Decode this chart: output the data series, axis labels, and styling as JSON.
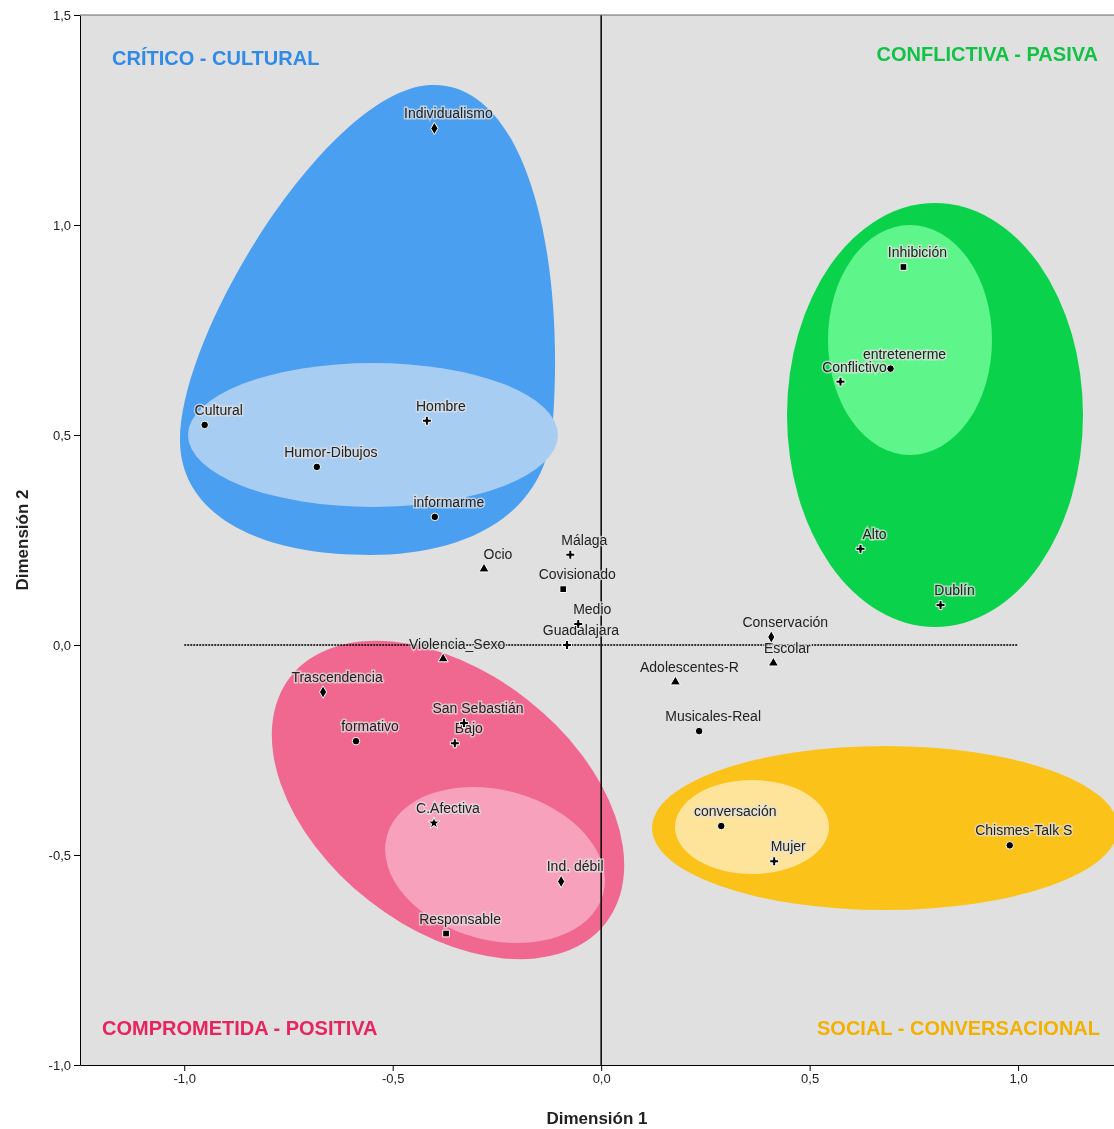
{
  "chart_data": {
    "type": "scatter",
    "xlabel": "Dimensión 1",
    "ylabel": "Dimensión 2",
    "xlim": [
      -1.25,
      1.23
    ],
    "ylim": [
      -1,
      1.5
    ],
    "xticks": [
      {
        "value": -1,
        "label": "-1,0"
      },
      {
        "value": -0.5,
        "label": "-0,5"
      },
      {
        "value": 0,
        "label": "0,0"
      },
      {
        "value": 0.5,
        "label": "0,5"
      },
      {
        "value": 1,
        "label": "1,0"
      }
    ],
    "yticks": [
      {
        "value": -1,
        "label": "-1,0"
      },
      {
        "value": -0.5,
        "label": "-0,5"
      },
      {
        "value": 0,
        "label": "0,0"
      },
      {
        "value": 0.5,
        "label": "0,5"
      },
      {
        "value": 1,
        "label": "1,0"
      },
      {
        "value": 1.5,
        "label": "1,5"
      }
    ],
    "grid": false,
    "ref_lines": [
      {
        "axis": "x",
        "value": 0,
        "line_style": "solid"
      },
      {
        "axis": "y",
        "value": 0,
        "line_style": "dotted"
      }
    ],
    "series": [
      {
        "color": "#000000",
        "marker": "circle",
        "x": [
          -0.951,
          -0.682,
          0.235,
          0.98,
          -0.399,
          0.694,
          -0.588,
          0.288
        ],
        "values": [
          0.524,
          0.424,
          -0.205,
          -0.477,
          0.305,
          0.658,
          -0.229,
          -0.431
        ]
      },
      {
        "color": "#000000",
        "marker": "diamond",
        "x": [
          -0.4,
          -0.667,
          0.408,
          -0.096
        ],
        "values": [
          1.23,
          -0.112,
          0.019,
          -0.563
        ]
      },
      {
        "color": "#000000",
        "marker": "square",
        "x": [
          0.725,
          -0.091,
          -0.372
        ],
        "values": [
          0.9,
          0.133,
          -0.687
        ]
      },
      {
        "color": "#000000",
        "marker": "triangle",
        "x": [
          -0.281,
          -0.379,
          0.178,
          0.413
        ],
        "values": [
          0.181,
          -0.033,
          -0.088,
          -0.043
        ]
      },
      {
        "color": "#000000",
        "marker": "cross",
        "x": [
          -0.418,
          0.415,
          -0.074,
          -0.082,
          -0.329,
          0.814,
          0.574,
          0.622,
          -0.055,
          -0.351
        ],
        "values": [
          0.534,
          -0.515,
          0.215,
          0,
          -0.186,
          0.095,
          0.627,
          0.229,
          0.05,
          -0.234
        ]
      },
      {
        "color": "#000000",
        "marker": "star",
        "x": [
          -0.401
        ],
        "values": [
          -0.424
        ]
      }
    ],
    "annotations": [
      "CRÍTICO - CULTURAL",
      "CONFLICTIVA - PASIVA",
      "COMPROMETIDA - POSITIVA",
      "SOCIAL - CONVERSACIONAL",
      {
        "text": "Individualismo",
        "x": -0.4,
        "y": 1.23
      },
      {
        "text": "Inhibición",
        "x": 0.725,
        "y": 0.9
      },
      {
        "text": "entretenerme",
        "x": 0.694,
        "y": 0.658
      },
      {
        "text": "Conflictivo",
        "x": 0.574,
        "y": 0.627
      },
      {
        "text": "Cultural",
        "x": -0.951,
        "y": 0.524
      },
      {
        "text": "Hombre",
        "x": -0.418,
        "y": 0.534
      },
      {
        "text": "Humor-Dibujos",
        "x": -0.682,
        "y": 0.424
      },
      {
        "text": "informarme",
        "x": -0.399,
        "y": 0.305
      },
      {
        "text": "Málaga",
        "x": -0.074,
        "y": 0.215
      },
      {
        "text": "Ocio",
        "x": -0.281,
        "y": 0.181
      },
      {
        "text": "Covisionado",
        "x": -0.091,
        "y": 0.133
      },
      {
        "text": "Alto",
        "x": 0.622,
        "y": 0.229
      },
      {
        "text": "Dublín",
        "x": 0.814,
        "y": 0.095
      },
      {
        "text": "Medio",
        "x": -0.055,
        "y": 0.05
      },
      {
        "text": "Conservación",
        "x": 0.408,
        "y": 0.019
      },
      {
        "text": "Violencia_Sexo",
        "x": -0.379,
        "y": -0.033
      },
      {
        "text": "Guadalajara",
        "x": -0.082,
        "y": 0
      },
      {
        "text": "Escolar",
        "x": 0.413,
        "y": -0.043
      },
      {
        "text": "Adolescentes-R",
        "x": 0.178,
        "y": -0.088
      },
      {
        "text": "Trascendencia",
        "x": -0.667,
        "y": -0.112
      },
      {
        "text": "San Sebastián",
        "x": -0.329,
        "y": -0.186
      },
      {
        "text": "formativo",
        "x": -0.588,
        "y": -0.229
      },
      {
        "text": "Bajo",
        "x": -0.351,
        "y": -0.234
      },
      {
        "text": "Musicales-Real",
        "x": 0.235,
        "y": -0.205
      },
      {
        "text": "C.Afectiva",
        "x": -0.401,
        "y": -0.424
      },
      {
        "text": "conversación",
        "x": 0.288,
        "y": -0.431
      },
      {
        "text": "Mujer",
        "x": 0.415,
        "y": -0.515
      },
      {
        "text": "Chismes-Talk S",
        "x": 0.98,
        "y": -0.477
      },
      {
        "text": "Ind. débil",
        "x": -0.096,
        "y": -0.563
      },
      {
        "text": "Responsable",
        "x": -0.372,
        "y": -0.687
      }
    ]
  }
}
